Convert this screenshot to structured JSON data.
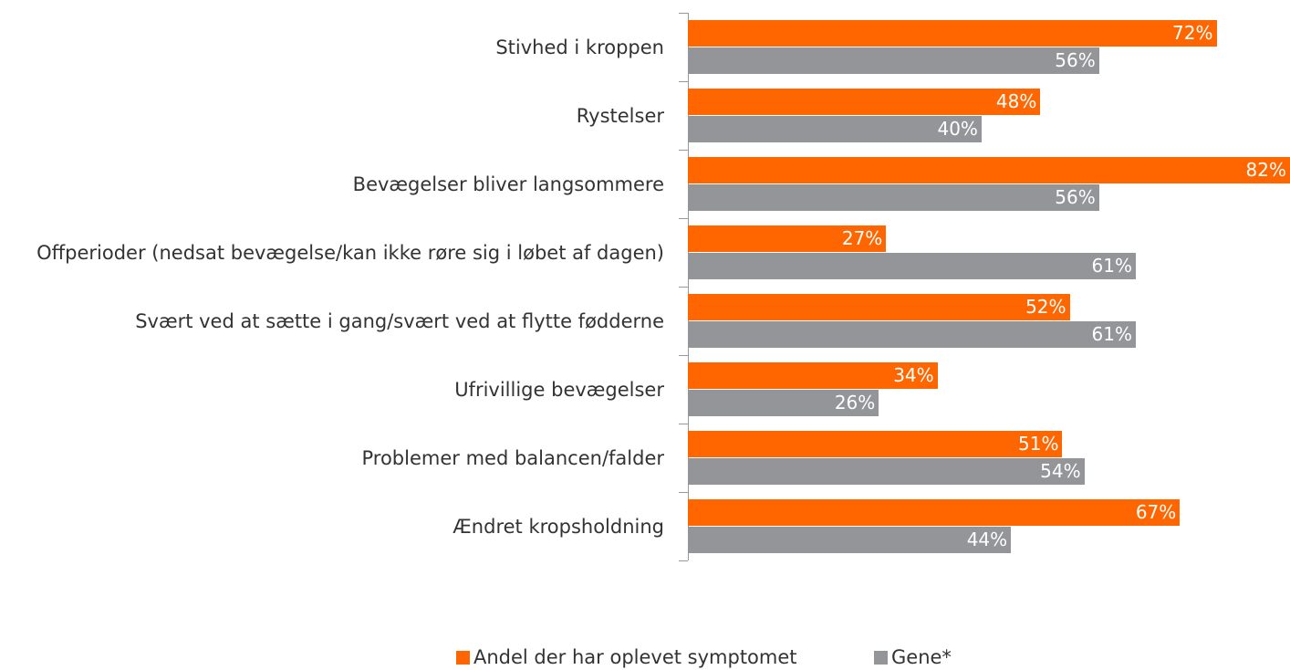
{
  "chart_data": {
    "type": "bar",
    "orientation": "horizontal",
    "categories": [
      "Stivhed i kroppen",
      "Rystelser",
      "Bevægelser bliver langsommere",
      "Offperioder (nedsat bevægelse/kan ikke røre sig i løbet af dagen)",
      "Svært ved at sætte i gang/svært ved at flytte fødderne",
      "Ufrivillige bevægelser",
      "Problemer med balancen/falder",
      "Ændret kropsholdning"
    ],
    "series": [
      {
        "name": "Andel der har oplevet symptomet",
        "color": "#ff6600",
        "values": [
          72,
          48,
          82,
          27,
          52,
          34,
          51,
          67
        ],
        "value_labels": [
          "72%",
          "48%",
          "82%",
          "27%",
          "52%",
          "34%",
          "51%",
          "67%"
        ]
      },
      {
        "name": "Gene*",
        "color": "#939598",
        "values": [
          56,
          40,
          56,
          61,
          61,
          26,
          54,
          44
        ],
        "value_labels": [
          "56%",
          "40%",
          "56%",
          "61%",
          "61%",
          "26%",
          "54%",
          "44%"
        ]
      }
    ],
    "xlim": [
      0,
      82
    ],
    "legend": "bottom"
  }
}
